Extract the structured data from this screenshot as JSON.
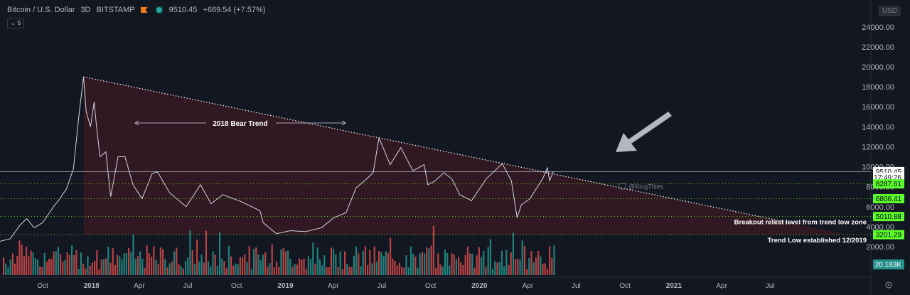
{
  "header": {
    "symbol": "Bitcoin / U.S. Dollar",
    "interval": "3D",
    "exchange": "BITSTAMP",
    "price": "9510.45",
    "change": "+669.54 (+7.57%)",
    "indicator_toggle": "⌄ 6",
    "currency": "USD",
    "flag_icon": "flag-icon",
    "status_color": "#26a69a"
  },
  "chart_data": {
    "type": "line",
    "y_scale": "linear",
    "ylim": [
      0,
      24000
    ],
    "y_ticks": [
      2000,
      4000,
      6000,
      8000,
      10000,
      12000,
      14000,
      16000,
      18000,
      20000,
      22000,
      24000
    ],
    "y_tick_labels": [
      "2000.00",
      "4000.00",
      "6000.00",
      "8000.00",
      "10000.00",
      "12000.00",
      "14000.00",
      "16000.00",
      "18000.00",
      "20000.00",
      "22000.00",
      "24000.00"
    ],
    "x_tick_labels": [
      "Oct",
      "2018",
      "Apr",
      "Jul",
      "Oct",
      "2019",
      "Apr",
      "Jul",
      "Oct",
      "2020",
      "Apr",
      "Jul",
      "Oct",
      "2021",
      "Apr",
      "Jul"
    ],
    "x_tick_dates": [
      "2017-10-01",
      "2018-01-01",
      "2018-04-01",
      "2018-07-01",
      "2018-10-01",
      "2019-01-01",
      "2019-04-01",
      "2019-07-01",
      "2019-10-01",
      "2020-01-01",
      "2020-04-01",
      "2020-07-01",
      "2020-10-01",
      "2021-01-01",
      "2021-04-01",
      "2021-07-01"
    ],
    "series": [
      {
        "values_date": [
          "2017-07-10",
          "2017-08-01",
          "2017-08-20",
          "2017-09-01",
          "2017-09-15",
          "2017-10-01",
          "2017-10-20",
          "2017-11-01",
          "2017-11-15",
          "2017-11-28",
          "2017-12-08",
          "2017-12-17",
          "2017-12-22",
          "2017-12-30",
          "2018-01-06",
          "2018-01-10",
          "2018-01-17",
          "2018-01-28",
          "2018-02-06",
          "2018-02-20",
          "2018-03-05",
          "2018-03-20",
          "2018-04-06",
          "2018-04-25",
          "2018-05-05",
          "2018-05-28",
          "2018-06-28",
          "2018-07-25",
          "2018-08-14",
          "2018-09-05",
          "2018-10-10",
          "2018-11-14",
          "2018-11-20",
          "2018-12-15",
          "2019-01-10",
          "2019-02-08",
          "2019-03-10",
          "2019-04-02",
          "2019-04-25",
          "2019-05-14",
          "2019-05-30",
          "2019-06-15",
          "2019-06-26",
          "2019-07-17",
          "2019-08-06",
          "2019-08-29",
          "2019-09-19",
          "2019-09-26",
          "2019-10-10",
          "2019-10-26",
          "2019-11-10",
          "2019-11-25",
          "2019-12-17",
          "2020-01-14",
          "2020-02-13",
          "2020-03-01",
          "2020-03-12",
          "2020-03-20",
          "2020-04-05",
          "2020-04-29",
          "2020-05-08",
          "2020-05-12",
          "2020-05-19"
        ],
        "values": [
          2500,
          2800,
          4200,
          4800,
          3900,
          4400,
          5900,
          6700,
          7800,
          9800,
          15000,
          19000,
          15500,
          14000,
          16500,
          14200,
          11000,
          11500,
          7000,
          11000,
          11000,
          8200,
          6800,
          9300,
          9500,
          7400,
          6000,
          8200,
          6300,
          7200,
          6500,
          5600,
          4400,
          3300,
          3600,
          3500,
          3900,
          4900,
          5400,
          7900,
          8600,
          9400,
          12900,
          10200,
          11900,
          9600,
          10200,
          8200,
          8600,
          9400,
          8800,
          7200,
          6600,
          8800,
          10300,
          8600,
          4900,
          6200,
          6800,
          8800,
          9900,
          8600,
          9510
        ]
      }
    ],
    "volume_axis_label": "20.183K",
    "volume_color_up": "#26a69a",
    "volume_color_down": "#ef5350",
    "price_levels": [
      {
        "label": "9510.45",
        "value": 9510.45,
        "style": "current"
      },
      {
        "label": "17:49:26",
        "value": 8950,
        "style": "countdown"
      },
      {
        "label": "8287.61",
        "value": 8287.61,
        "style": "level"
      },
      {
        "label": "6806.41",
        "value": 6806.41,
        "style": "level"
      },
      {
        "label": "5010.88",
        "value": 5010.88,
        "style": "level"
      },
      {
        "label": "3201.29",
        "value": 3201.29,
        "style": "level"
      }
    ],
    "trendline": {
      "from_date": "2017-12-17",
      "from_value": 19000,
      "to_date": "2021-08-15",
      "to_value": 4300,
      "color": "#ffffff"
    },
    "annotations": {
      "bear_trend": "2018 Bear Trend",
      "breakout_retest": "Breakout retest level from trend low zone",
      "trend_low": "Trend Low established 12/2019",
      "watermark": "@KingThies"
    },
    "colors": {
      "background": "#131722",
      "line": "#d1d4dc",
      "triangle_fill": "#4a1c24",
      "level_green": "#76ff03",
      "level_label_bg": "#5cff2b"
    }
  }
}
